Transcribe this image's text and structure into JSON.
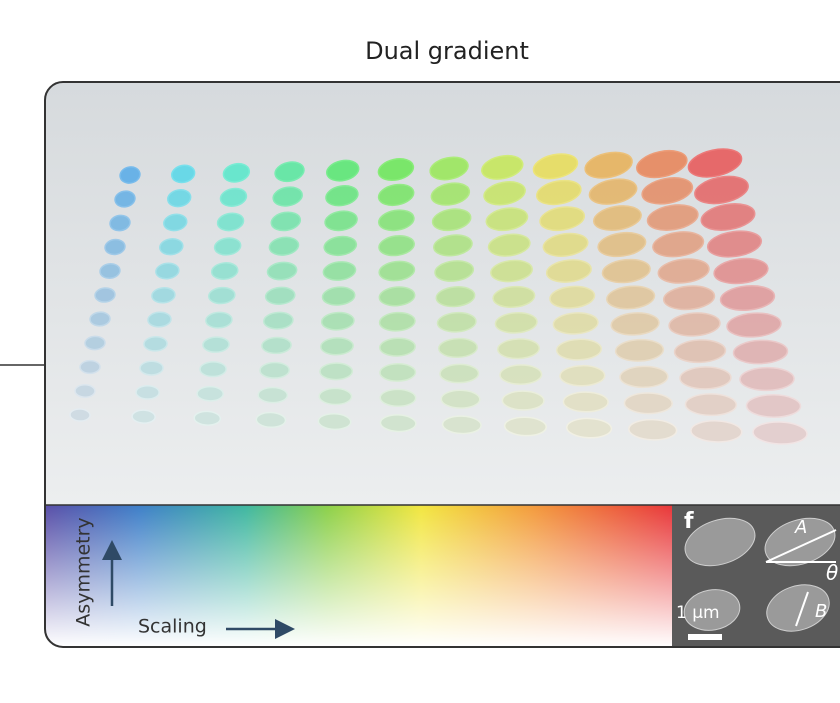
{
  "title": "Dual gradient",
  "legend": {
    "y_label": "Asymmetry",
    "x_label": "Scaling"
  },
  "inset": {
    "panel_label": "f",
    "labels": [
      "A",
      "θ",
      "B"
    ],
    "scale_bar": "1 µm"
  }
}
